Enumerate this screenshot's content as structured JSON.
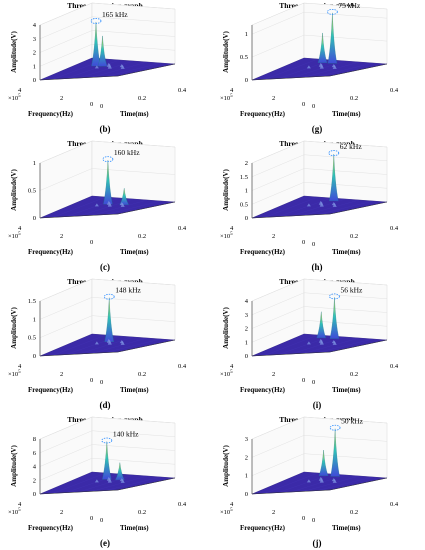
{
  "colors": {
    "floor": "#3b2aa8",
    "peak_low": "#3f4bd8",
    "peak_mid": "#2fc3b6",
    "peak_high": "#f2e22b",
    "ellipse": "#2a8cff"
  },
  "common": {
    "ylabel": "Amplitude(V)",
    "xlabel": "Frequency(Hz)",
    "tlabel": "Time(ms)",
    "exponent": "×10",
    "exponent_power": "5"
  },
  "chart_data": [
    {
      "panel": "(b)",
      "type": "surface3d",
      "title": "Three-dimension graph",
      "annotation": "165 kHz",
      "z_ticks": [
        "0",
        "1",
        "2",
        "3",
        "4"
      ],
      "zlim": [
        0,
        4
      ],
      "freq_ticks": [
        "4",
        "2",
        "0"
      ],
      "time_ticks": [
        "0",
        "0.2",
        "0.4"
      ],
      "peaks": [
        {
          "time_ms": 0.13,
          "freq_hz": 165000,
          "amplitude": 3.2
        },
        {
          "time_ms": 0.17,
          "freq_hz": 165000,
          "amplitude": 2.2
        }
      ]
    },
    {
      "panel": "(g)",
      "type": "surface3d",
      "title": "Three-dimension graph",
      "annotation": "75 kHz",
      "z_ticks": [
        "0",
        "0.5",
        "1"
      ],
      "zlim": [
        0,
        1.2
      ],
      "freq_ticks": [
        "4",
        "2",
        "0"
      ],
      "time_ticks": [
        "0",
        "0.2",
        "0.4"
      ],
      "peaks": [
        {
          "time_ms": 0.22,
          "freq_hz": 75000,
          "amplitude": 1.1
        },
        {
          "time_ms": 0.16,
          "freq_hz": 75000,
          "amplitude": 0.65
        }
      ]
    },
    {
      "panel": "(c)",
      "type": "surface3d",
      "title": "Three-dimension graph",
      "annotation": "160 kHz",
      "z_ticks": [
        "0",
        "0.5",
        "1"
      ],
      "zlim": [
        0,
        1
      ],
      "freq_ticks": [
        "4",
        "2",
        "0"
      ],
      "time_ticks": [
        "0.2",
        "0.4"
      ],
      "peaks": [
        {
          "time_ms": 0.2,
          "freq_hz": 160000,
          "amplitude": 0.8
        },
        {
          "time_ms": 0.3,
          "freq_hz": 160000,
          "amplitude": 0.3
        }
      ]
    },
    {
      "panel": "(h)",
      "type": "surface3d",
      "title": "Three-dimension graph",
      "annotation": "62 kHz",
      "z_ticks": [
        "0",
        "0.5",
        "1",
        "1.5",
        "2"
      ],
      "zlim": [
        0,
        2
      ],
      "freq_ticks": [
        "4",
        "2",
        "0"
      ],
      "time_ticks": [
        "0",
        "0.2",
        "0.4"
      ],
      "peaks": [
        {
          "time_ms": 0.22,
          "freq_hz": 62000,
          "amplitude": 1.7
        }
      ]
    },
    {
      "panel": "(d)",
      "type": "surface3d",
      "title": "Three-dimension graph",
      "annotation": "148 kHz",
      "z_ticks": [
        "0",
        "0.5",
        "1",
        "1.5"
      ],
      "zlim": [
        0,
        1.5
      ],
      "freq_ticks": [
        "4",
        "2",
        "0"
      ],
      "time_ticks": [
        "0",
        "0.2",
        "0.4"
      ],
      "peaks": [
        {
          "time_ms": 0.2,
          "freq_hz": 148000,
          "amplitude": 1.2
        }
      ]
    },
    {
      "panel": "(i)",
      "type": "surface3d",
      "title": "Three-dimension graph",
      "annotation": "56 kHz",
      "z_ticks": [
        "0",
        "1",
        "2",
        "3",
        "4"
      ],
      "zlim": [
        0,
        4
      ],
      "freq_ticks": [
        "4",
        "2",
        "0"
      ],
      "time_ticks": [
        "0",
        "0.2",
        "0.4"
      ],
      "peaks": [
        {
          "time_ms": 0.22,
          "freq_hz": 56000,
          "amplitude": 3.0
        },
        {
          "time_ms": 0.14,
          "freq_hz": 56000,
          "amplitude": 1.9
        }
      ]
    },
    {
      "panel": "(e)",
      "type": "surface3d",
      "title": "Three-dimension graph",
      "annotation": "140 kHz",
      "z_ticks": [
        "0",
        "2",
        "4",
        "6",
        "8"
      ],
      "zlim": [
        0,
        8
      ],
      "freq_ticks": [
        "4",
        "2",
        "0"
      ],
      "time_ticks": [
        "0",
        "0.2",
        "0.4"
      ],
      "peaks": [
        {
          "time_ms": 0.18,
          "freq_hz": 140000,
          "amplitude": 5.5
        },
        {
          "time_ms": 0.26,
          "freq_hz": 140000,
          "amplitude": 2.5
        }
      ]
    },
    {
      "panel": "(j)",
      "type": "surface3d",
      "title": "Three-dimension graph",
      "annotation": "50 kHz",
      "z_ticks": [
        "0",
        "1",
        "2",
        "3"
      ],
      "zlim": [
        0,
        3
      ],
      "freq_ticks": [
        "4",
        "2",
        "0"
      ],
      "time_ticks": [
        "0",
        "0.2",
        "0.4"
      ],
      "peaks": [
        {
          "time_ms": 0.22,
          "freq_hz": 50000,
          "amplitude": 2.6
        },
        {
          "time_ms": 0.15,
          "freq_hz": 50000,
          "amplitude": 1.4
        }
      ]
    }
  ]
}
